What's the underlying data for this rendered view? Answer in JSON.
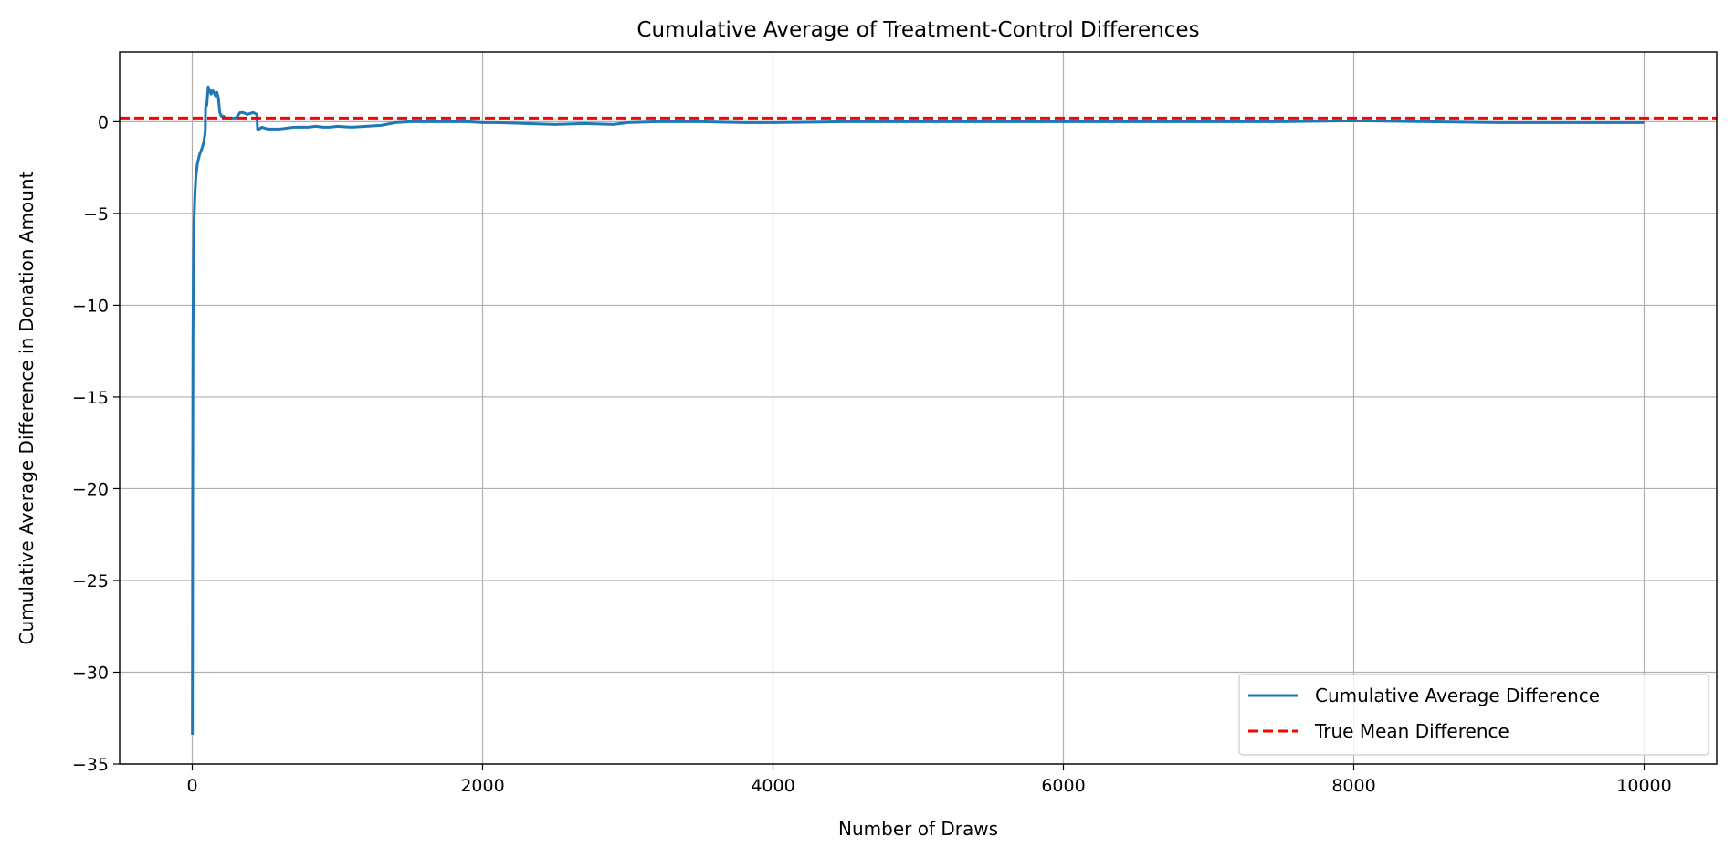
{
  "chart_data": {
    "type": "line",
    "title": "Cumulative Average of Treatment-Control Differences",
    "xlabel": "Number of Draws",
    "ylabel": "Cumulative Average Difference in Donation Amount",
    "xlim": [
      -500,
      10500
    ],
    "ylim": [
      -35,
      3.8
    ],
    "xticks": [
      0,
      2000,
      4000,
      6000,
      8000,
      10000
    ],
    "yticks": [
      0,
      -5,
      -10,
      -15,
      -20,
      -25,
      -30,
      -35
    ],
    "xtick_labels": [
      "0",
      "2000",
      "4000",
      "6000",
      "8000",
      "10000"
    ],
    "ytick_labels": [
      "0",
      "−5",
      "−10",
      "−15",
      "−20",
      "−25",
      "−30",
      "−35"
    ],
    "grid": true,
    "legend_position": "lower-right",
    "series": [
      {
        "name": "Cumulative Average Difference",
        "color": "#1f77b4",
        "style": "solid",
        "x": [
          1,
          3,
          5,
          8,
          12,
          18,
          25,
          35,
          50,
          65,
          80,
          90,
          92,
          100,
          110,
          120,
          130,
          140,
          150,
          160,
          170,
          180,
          190,
          200,
          215,
          230,
          250,
          300,
          330,
          350,
          380,
          420,
          445,
          450,
          460,
          480,
          520,
          600,
          700,
          800,
          850,
          900,
          950,
          1000,
          1100,
          1200,
          1300,
          1400,
          1500,
          1700,
          1900,
          2000,
          2100,
          2300,
          2500,
          2700,
          2900,
          3000,
          3200,
          3500,
          3800,
          4000,
          4500,
          5000,
          5500,
          6000,
          6500,
          7000,
          7500,
          8000,
          8500,
          9000,
          9500,
          10000
        ],
        "y": [
          -33.4,
          -20.0,
          -12.0,
          -8.0,
          -5.5,
          -4.0,
          -3.0,
          -2.3,
          -1.8,
          -1.5,
          -1.1,
          -0.5,
          0.8,
          0.9,
          1.9,
          1.7,
          1.5,
          1.7,
          1.6,
          1.4,
          1.6,
          1.3,
          0.5,
          0.3,
          0.3,
          0.2,
          0.2,
          0.2,
          0.5,
          0.5,
          0.4,
          0.5,
          0.4,
          -0.4,
          -0.4,
          -0.3,
          -0.4,
          -0.4,
          -0.3,
          -0.3,
          -0.25,
          -0.3,
          -0.3,
          -0.25,
          -0.3,
          -0.25,
          -0.2,
          -0.05,
          0.0,
          0.0,
          0.0,
          -0.05,
          -0.05,
          -0.1,
          -0.15,
          -0.1,
          -0.15,
          -0.05,
          0.0,
          0.0,
          -0.05,
          -0.05,
          0.0,
          0.0,
          0.0,
          0.0,
          0.0,
          0.0,
          0.0,
          0.05,
          0.0,
          -0.05,
          -0.05,
          -0.05
        ]
      },
      {
        "name": "True Mean Difference",
        "color": "#ff0000",
        "style": "dashed",
        "y_constant": 0.2
      }
    ]
  }
}
